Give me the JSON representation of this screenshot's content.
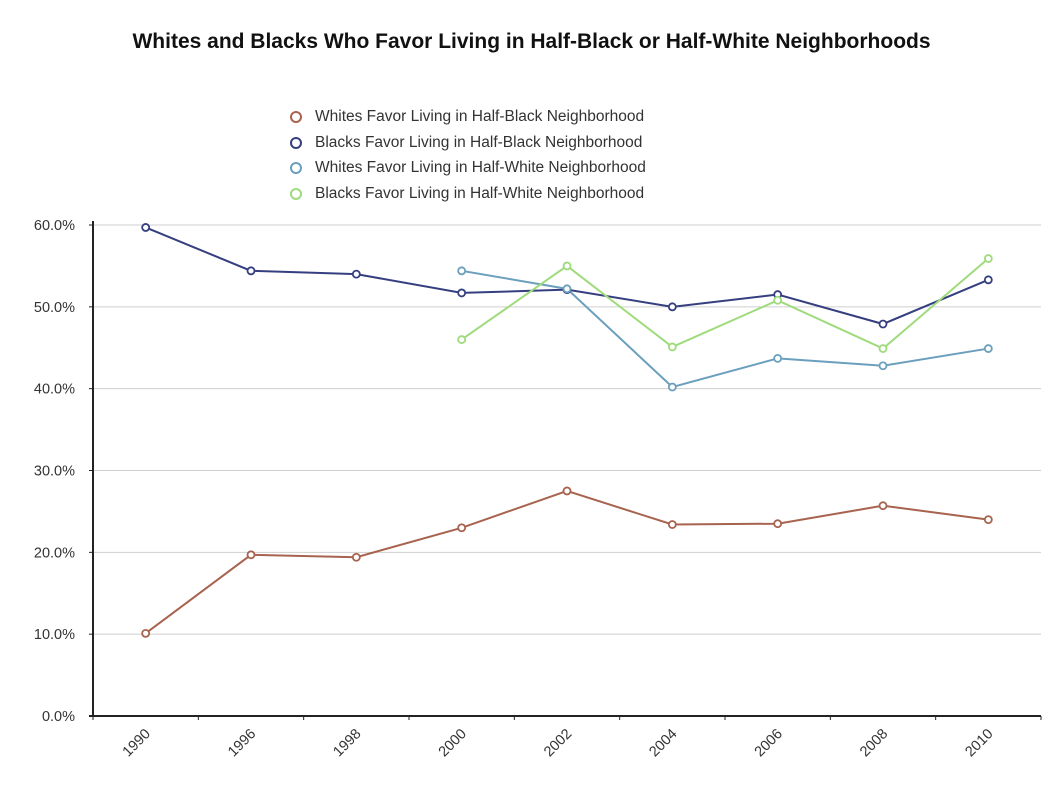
{
  "chart_data": {
    "type": "line",
    "title": "Whites and Blacks Who Favor Living in Half-Black or Half-White Neighborhoods",
    "xlabel": "",
    "ylabel": "",
    "categories": [
      "1990",
      "1996",
      "1998",
      "2000",
      "2002",
      "2004",
      "2006",
      "2008",
      "2010"
    ],
    "ylim": [
      0,
      60
    ],
    "yticks": [
      "0.0%",
      "10.0%",
      "20.0%",
      "30.0%",
      "40.0%",
      "50.0%",
      "60.0%"
    ],
    "grid": "horizontal",
    "legend_position": "top",
    "series": [
      {
        "name": "Whites Favor Living in Half-Black Neighborhood",
        "color": "#a8634e",
        "values": [
          10.1,
          19.7,
          19.4,
          23.0,
          27.5,
          23.4,
          23.5,
          25.7,
          24.0
        ]
      },
      {
        "name": "Blacks Favor Living in Half-Black Neighborhood",
        "color": "#353f80",
        "values": [
          59.7,
          54.4,
          54.0,
          51.7,
          52.1,
          50.0,
          51.5,
          47.9,
          53.3
        ]
      },
      {
        "name": "Whites Favor Living in Half-White Neighborhood",
        "color": "#6a9fbd",
        "values": [
          null,
          null,
          null,
          54.4,
          52.2,
          40.2,
          43.7,
          42.8,
          44.9
        ]
      },
      {
        "name": "Blacks Favor Living in Half-White Neighborhood",
        "color": "#9fdb7c",
        "values": [
          null,
          null,
          null,
          46.0,
          55.0,
          45.1,
          50.8,
          44.9,
          55.9
        ]
      }
    ]
  }
}
